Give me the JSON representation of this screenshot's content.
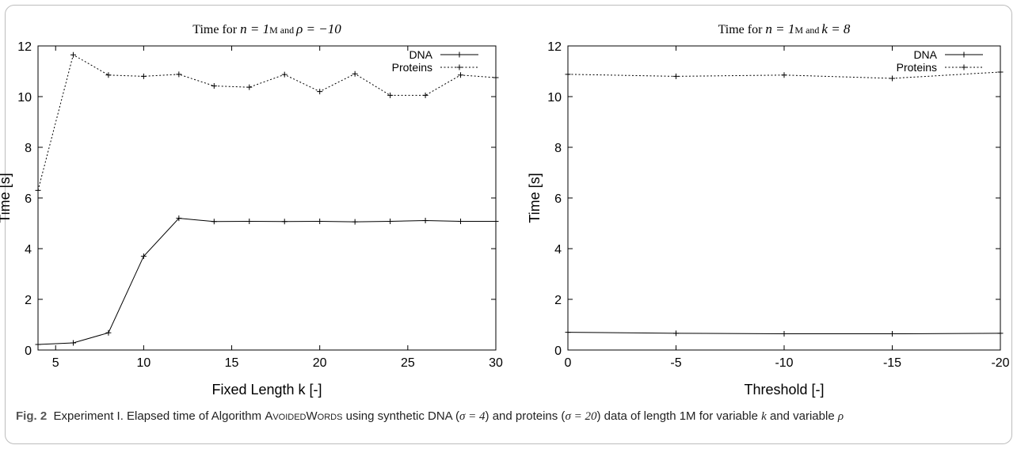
{
  "chart_data": [
    {
      "type": "line",
      "title_parts": {
        "prefix": "Time for",
        "math1": "n = 1",
        "m_and": "M and",
        "math2": "ρ = −10"
      },
      "xlabel": "Fixed Length k [-]",
      "ylabel": "Time [s]",
      "xlim": [
        4,
        30
      ],
      "ylim": [
        0,
        12
      ],
      "xticks": [
        5,
        10,
        15,
        20,
        25,
        30
      ],
      "yticks": [
        0,
        2,
        4,
        6,
        8,
        10,
        12
      ],
      "legend_position": "top-right",
      "series": [
        {
          "name": "DNA",
          "style": "solid",
          "x": [
            4,
            6,
            8,
            10,
            12,
            14,
            16,
            18,
            20,
            22,
            24,
            26,
            28,
            30
          ],
          "values": [
            0.22,
            0.28,
            0.68,
            3.7,
            5.2,
            5.07,
            5.08,
            5.07,
            5.08,
            5.06,
            5.08,
            5.11,
            5.08,
            5.08
          ]
        },
        {
          "name": "Proteins",
          "style": "dotted",
          "x": [
            4,
            6,
            8,
            10,
            12,
            14,
            16,
            18,
            20,
            22,
            24,
            26,
            28,
            30
          ],
          "values": [
            6.3,
            11.65,
            10.85,
            10.8,
            10.88,
            10.42,
            10.37,
            10.87,
            10.2,
            10.9,
            10.05,
            10.05,
            10.85,
            10.75
          ]
        }
      ]
    },
    {
      "type": "line",
      "title_parts": {
        "prefix": "Time for",
        "math1": "n = 1",
        "m_and": "M and",
        "math2": "k = 8"
      },
      "xlabel": "Threshold [-]",
      "ylabel": "Time [s]",
      "xlim": [
        0,
        -20
      ],
      "ylim": [
        0,
        12
      ],
      "xticks": [
        0,
        -5,
        -10,
        -15,
        -20
      ],
      "yticks": [
        0,
        2,
        4,
        6,
        8,
        10,
        12
      ],
      "legend_position": "top-right",
      "series": [
        {
          "name": "DNA",
          "style": "solid",
          "x": [
            0,
            -5,
            -10,
            -15,
            -20
          ],
          "values": [
            0.7,
            0.66,
            0.64,
            0.64,
            0.66
          ]
        },
        {
          "name": "Proteins",
          "style": "dotted",
          "x": [
            0,
            -5,
            -10,
            -15,
            -20
          ],
          "values": [
            10.88,
            10.8,
            10.85,
            10.72,
            10.97
          ]
        }
      ]
    }
  ],
  "caption": {
    "label": "Fig. 2",
    "before_algo": "Experiment I. Elapsed time of Algorithm",
    "algo": "AvoidedWords",
    "text1": "using synthetic DNA (",
    "sigma1": "σ = 4",
    "text2": ") and proteins (",
    "sigma2": "σ = 20",
    "text3": ") data of length 1M for variable",
    "var1": "k",
    "text4": "and variable",
    "var2": "ρ"
  }
}
